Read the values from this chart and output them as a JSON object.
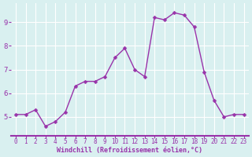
{
  "x": [
    0,
    1,
    2,
    3,
    4,
    5,
    6,
    7,
    8,
    9,
    10,
    11,
    12,
    13,
    14,
    15,
    16,
    17,
    18,
    19,
    20,
    21,
    22,
    23
  ],
  "y": [
    5.1,
    5.1,
    5.3,
    4.6,
    4.8,
    5.2,
    6.3,
    6.5,
    6.5,
    6.7,
    7.5,
    7.9,
    7.0,
    6.7,
    9.2,
    9.1,
    9.4,
    9.3,
    8.8,
    6.9,
    5.7,
    5.0,
    5.1,
    5.1
  ],
  "line_color": "#9933aa",
  "marker_color": "#9933aa",
  "bg_color": "#cce8e8",
  "plot_bg_color": "#d9f0f0",
  "grid_color": "#ffffff",
  "xlabel": "Windchill (Refroidissement éolien,°C)",
  "xlabel_color": "#9933aa",
  "tick_color": "#9933aa",
  "spine_color": "#9933aa",
  "title": "",
  "ylim": [
    4.2,
    9.8
  ],
  "yticks": [
    5,
    6,
    7,
    8,
    9
  ],
  "xlim": [
    -0.5,
    23.5
  ],
  "xticks": [
    0,
    1,
    2,
    3,
    4,
    5,
    6,
    7,
    8,
    9,
    10,
    11,
    12,
    13,
    14,
    15,
    16,
    17,
    18,
    19,
    20,
    21,
    22,
    23
  ],
  "tick_fontsize": 5.5,
  "xlabel_fontsize": 6.0,
  "ylabel_fontsize": 6.5
}
